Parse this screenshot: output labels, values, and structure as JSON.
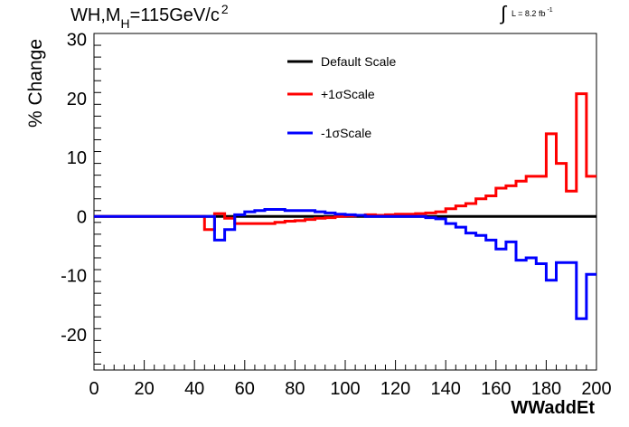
{
  "chart_data": {
    "type": "line",
    "title": {
      "main": "WH,M",
      "sub": "H",
      "mid": "=115GeV/c",
      "sup": "2"
    },
    "lumi": {
      "integral": "∫",
      "text": "L = 8.2 fb",
      "sup": "-1"
    },
    "xlabel": "WWaddEt",
    "ylabel": "% Change",
    "xlim": [
      0,
      200
    ],
    "ylim": [
      -26,
      31
    ],
    "xticks": [
      0,
      20,
      40,
      60,
      80,
      100,
      120,
      140,
      160,
      180,
      200
    ],
    "yticks": [
      -20,
      -10,
      0,
      10,
      20,
      30
    ],
    "bin_edges": [
      0,
      4,
      8,
      12,
      16,
      20,
      24,
      28,
      32,
      36,
      40,
      44,
      48,
      52,
      56,
      60,
      64,
      68,
      72,
      76,
      80,
      84,
      88,
      92,
      96,
      100,
      104,
      108,
      112,
      116,
      120,
      124,
      128,
      132,
      136,
      140,
      144,
      148,
      152,
      156,
      160,
      164,
      168,
      172,
      176,
      180,
      184,
      188,
      192,
      196,
      200
    ],
    "legend_position": "top-center",
    "series": [
      {
        "name": "Default Scale",
        "color": "#000000",
        "values": [
          0,
          0,
          0,
          0,
          0,
          0,
          0,
          0,
          0,
          0,
          0,
          0,
          0,
          0,
          0,
          0,
          0,
          0,
          0,
          0,
          0,
          0,
          0,
          0,
          0,
          0,
          0,
          0,
          0,
          0,
          0,
          0,
          0,
          0,
          0,
          0,
          0,
          0,
          0,
          0,
          0,
          0,
          0,
          0,
          0,
          0,
          0,
          0,
          0,
          0
        ]
      },
      {
        "name": "+1σScale",
        "color": "#ff0000",
        "values": [
          0,
          0,
          0,
          0,
          0,
          0,
          0,
          0,
          0,
          0,
          0,
          -2.2,
          0.5,
          -0.3,
          -1.2,
          -1.2,
          -1.2,
          -1.2,
          -1.0,
          -0.8,
          -0.7,
          -0.5,
          -0.3,
          -0.2,
          0,
          0.1,
          0.2,
          0.3,
          0.2,
          0.3,
          0.4,
          0.4,
          0.5,
          0.6,
          0.8,
          1.3,
          1.8,
          2.2,
          3.0,
          3.5,
          4.8,
          5.2,
          6.0,
          6.8,
          6.8,
          14.0,
          9.0,
          4.3,
          20.8,
          6.8
        ]
      },
      {
        "name": "-1σScale",
        "color": "#0000ff",
        "values": [
          0,
          0,
          0,
          0,
          0,
          0,
          0,
          0,
          0,
          0,
          0,
          0,
          -4.0,
          -2.2,
          0.3,
          0.8,
          1.0,
          1.2,
          1.2,
          1.0,
          1.0,
          1.0,
          0.8,
          0.6,
          0.4,
          0.3,
          0.2,
          0,
          0,
          0,
          0,
          0,
          0,
          -0.2,
          -0.4,
          -1.2,
          -1.8,
          -2.8,
          -3.2,
          -4.0,
          -5.5,
          -4.3,
          -7.4,
          -7.0,
          -8.0,
          -10.8,
          -7.8,
          -7.8,
          -17.3,
          -9.8
        ]
      }
    ]
  }
}
